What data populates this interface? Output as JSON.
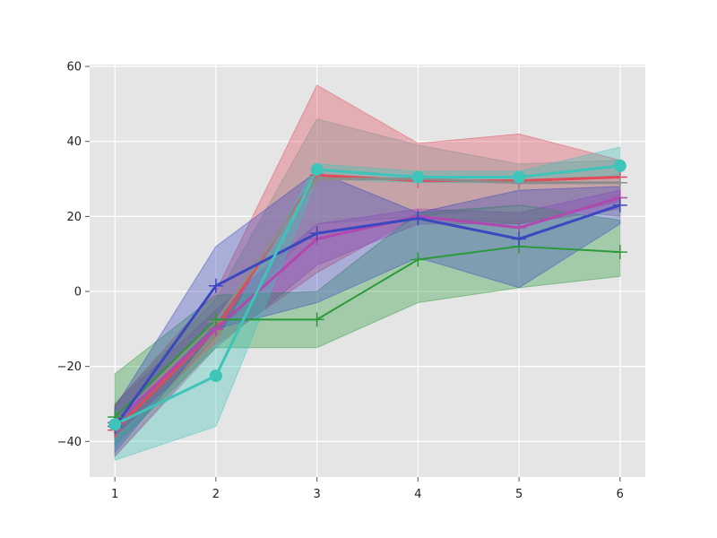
{
  "chart_data": {
    "type": "line",
    "title": "",
    "xlabel": "",
    "ylabel": "",
    "x": [
      1,
      2,
      3,
      4,
      5,
      6
    ],
    "xlim": [
      0.75,
      6.25
    ],
    "ylim": [
      -49.5,
      60.5
    ],
    "x_ticks": [
      1,
      2,
      3,
      4,
      5,
      6
    ],
    "y_ticks": [
      -40,
      -20,
      0,
      20,
      40,
      60
    ],
    "grid": true,
    "legend": "none",
    "colors": {
      "background": "#e5e5e5",
      "grid": "#ffffff"
    },
    "series": [
      {
        "color": "#e24a5a",
        "marker": "plus",
        "values": [
          -37,
          -10,
          31,
          29.5,
          29.5,
          30.5
        ],
        "band_low": [
          -44,
          -14,
          5,
          20,
          18,
          24
        ],
        "band_high": [
          -30,
          0,
          55,
          39.5,
          42,
          35
        ]
      },
      {
        "color": "#8c8c8c",
        "marker": "plus",
        "values": [
          -35,
          -8,
          30,
          30,
          29,
          29
        ],
        "band_low": [
          -42,
          -12,
          18,
          20,
          23,
          20
        ],
        "band_high": [
          -30,
          -2,
          46,
          39,
          34,
          35
        ]
      },
      {
        "color": "#b048b0",
        "marker": "plus",
        "values": [
          -35,
          -10,
          14,
          20,
          17,
          25
        ],
        "band_low": [
          -44,
          -15,
          7,
          18,
          18,
          22
        ],
        "band_high": [
          -30,
          -5,
          18,
          22,
          21,
          27
        ]
      },
      {
        "color": "#2a9a3a",
        "marker": "plus",
        "values": [
          -33.5,
          -7.5,
          -7.5,
          8.5,
          12,
          10.5
        ],
        "band_low": [
          -41,
          -15,
          -15,
          -3,
          1,
          4
        ],
        "band_high": [
          -22,
          -1,
          0,
          21,
          23,
          19
        ]
      },
      {
        "color": "#3a48c0",
        "marker": "plus",
        "values": [
          -36,
          1.5,
          15.5,
          19.5,
          14,
          23
        ],
        "band_low": [
          -43,
          -10,
          -3,
          9,
          1,
          18
        ],
        "band_high": [
          -31,
          12,
          32,
          21,
          27,
          28
        ]
      },
      {
        "color": "#3ec4b8",
        "marker": "circle",
        "values": [
          -35.5,
          -22.5,
          32.5,
          30.5,
          30.5,
          33.5
        ],
        "band_low": [
          -45,
          -36,
          30,
          29,
          29,
          31
        ],
        "band_high": [
          -39,
          -14,
          34,
          32,
          32,
          38.5
        ]
      }
    ]
  }
}
